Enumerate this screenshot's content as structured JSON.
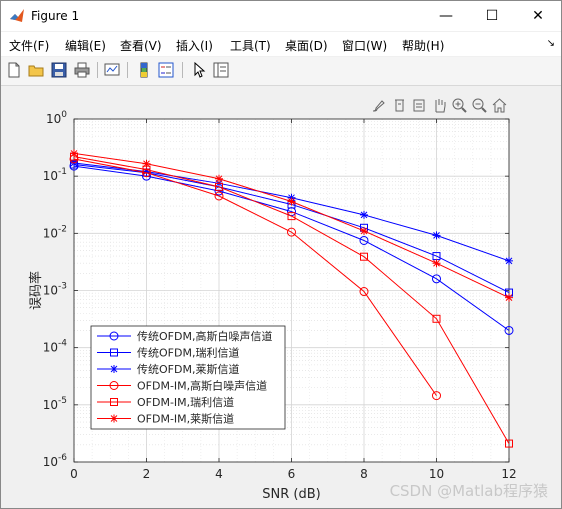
{
  "window": {
    "title": "Figure 1",
    "controls": {
      "minimize": "—",
      "maximize": "☐",
      "close": "✕"
    }
  },
  "menu": {
    "items": [
      {
        "label": "文件(F)"
      },
      {
        "label": "编辑(E)"
      },
      {
        "label": "查看(V)"
      },
      {
        "label": "插入(I)"
      },
      {
        "label": "工具(T)"
      },
      {
        "label": "桌面(D)"
      },
      {
        "label": "窗口(W)"
      },
      {
        "label": "帮助(H)"
      }
    ],
    "overflow_icon": "dock-arrow-icon"
  },
  "toolbar": {
    "icons": [
      "new-figure-icon",
      "open-file-icon",
      "save-icon",
      "print-icon",
      "link-plot-icon",
      "insert-colorbar-icon",
      "insert-legend-icon",
      "edit-plot-arrow-icon",
      "property-inspector-icon"
    ]
  },
  "axes_toolbar": {
    "icons": [
      "brush-icon",
      "data-tips-icon",
      "export-icon",
      "pan-icon",
      "zoom-in-icon",
      "zoom-out-icon",
      "home-icon"
    ]
  },
  "watermark": "CSDN @Matlab程序猿",
  "chart_data": {
    "type": "line",
    "title": "",
    "xlabel": "SNR (dB)",
    "ylabel": "误码率",
    "xlim": [
      0,
      12
    ],
    "ylim": [
      1e-06,
      1
    ],
    "yscale": "log",
    "grid": true,
    "minor_grid": true,
    "legend_location": "bottom-left",
    "x_ticks": [
      "0",
      "2",
      "4",
      "6",
      "8",
      "10",
      "12"
    ],
    "y_ticks": [
      "10^0",
      "10^-1",
      "10^-2",
      "10^-3",
      "10^-4",
      "10^-5",
      "10^-6"
    ],
    "x": [
      0,
      2,
      4,
      6,
      8,
      10,
      12
    ],
    "series": [
      {
        "name": "传统OFDM,高斯白噪声信道",
        "color": "#0000ff",
        "marker": "circle",
        "values": [
          0.15,
          0.1,
          0.055,
          0.024,
          0.0075,
          0.0016,
          0.0002
        ]
      },
      {
        "name": "传统OFDM,瑞利信道",
        "color": "#0000ff",
        "marker": "square",
        "values": [
          0.16,
          0.115,
          0.065,
          0.032,
          0.0125,
          0.004,
          0.00092
        ]
      },
      {
        "name": "传统OFDM,莱斯信道",
        "color": "#0000ff",
        "marker": "asterisk",
        "values": [
          0.17,
          0.12,
          0.075,
          0.042,
          0.021,
          0.0092,
          0.0033
        ]
      },
      {
        "name": "OFDM-IM,高斯白噪声信道",
        "color": "#ff0000",
        "marker": "circle",
        "values": [
          0.2,
          0.115,
          0.045,
          0.0105,
          0.00096,
          1.45e-05,
          null
        ]
      },
      {
        "name": "OFDM-IM,瑞利信道",
        "color": "#ff0000",
        "marker": "square",
        "values": [
          0.22,
          0.13,
          0.065,
          0.02,
          0.0039,
          0.00032,
          2.1e-06
        ]
      },
      {
        "name": "OFDM-IM,莱斯信道",
        "color": "#ff0000",
        "marker": "asterisk",
        "values": [
          0.25,
          0.165,
          0.09,
          0.036,
          0.011,
          0.003,
          0.00075
        ]
      }
    ]
  }
}
